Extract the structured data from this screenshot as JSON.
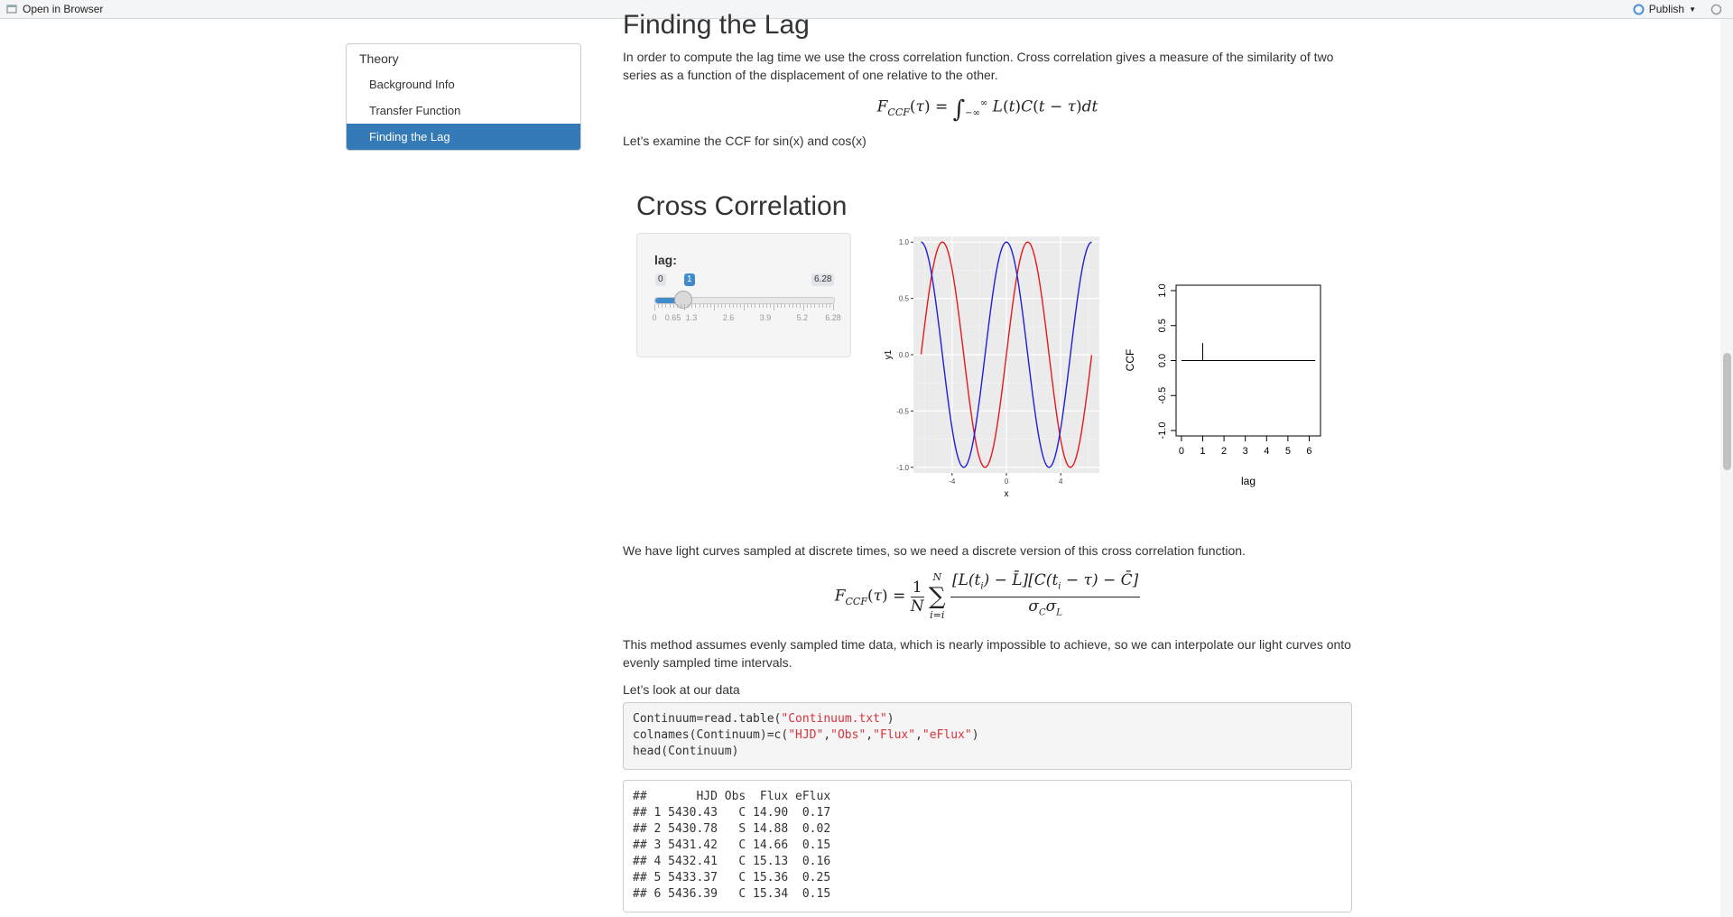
{
  "toolbar": {
    "open_in_browser": "Open in Browser",
    "publish": "Publish"
  },
  "toc": {
    "title": "Theory",
    "items": [
      "Background Info",
      "Transfer Function",
      "Finding the Lag"
    ]
  },
  "section": {
    "heading": "Finding the Lag",
    "p1": "In order to compute the lag time we use the cross correlation function. Cross correlation gives a measure of the similarity of two series as a function of the displacement of one relative to the other.",
    "p2": "Let’s examine the CCF for sin(x) and cos(x)",
    "p3": "We have light curves sampled at discrete times, so we need a discrete version of this cross correlation function.",
    "p4": "This method assumes evenly sampled time data, which is nearly impossible to achieve, so we can interpolate our light curves onto evenly sampled time intervals.",
    "p5": "Let’s look at our data"
  },
  "app": {
    "title": "Cross Correlation",
    "slider": {
      "label": "lag:",
      "min_label": "0",
      "max_label": "6.28",
      "value_label": "1",
      "value": 1,
      "min": 0,
      "max": 6.28,
      "tick_labels": [
        "0",
        "0.65",
        "1.3",
        "2.6",
        "3.9",
        "5.2",
        "6.28"
      ]
    }
  },
  "colors": {
    "accent": "#337ab7",
    "sin": "#e41a1c",
    "cos": "#1f1fd6"
  },
  "chart_data": [
    {
      "type": "line",
      "title": "",
      "xlabel": "x",
      "ylabel": "y1",
      "xlim": [
        -6.28,
        6.28
      ],
      "ylim": [
        -1,
        1
      ],
      "xticks": [
        "-4",
        "0",
        "4"
      ],
      "yticks": [
        "-1.0",
        "-0.5",
        "0.0",
        "0.5",
        "1.0"
      ],
      "grid": true,
      "series": [
        {
          "color": "#e41a1c",
          "function": "sin(x)"
        },
        {
          "color": "#1f1fd6",
          "function": "cos(x)"
        }
      ]
    },
    {
      "type": "bar",
      "title": "",
      "xlabel": "lag",
      "ylabel": "CCF",
      "xlim": [
        0,
        6.28
      ],
      "ylim": [
        -1,
        1
      ],
      "xticks": [
        "0",
        "1",
        "2",
        "3",
        "4",
        "5",
        "6"
      ],
      "yticks": [
        "-1.0",
        "-0.5",
        "0.0",
        "0.5",
        "1.0"
      ],
      "spike": {
        "x": 1,
        "y": 0.25
      }
    }
  ],
  "code": {
    "lines": [
      [
        "Continuum=read.table(",
        "\"Continuum.txt\"",
        ")"
      ],
      [
        "colnames(Continuum)=c(",
        "\"HJD\"",
        ",",
        "\"Obs\"",
        ",",
        "\"Flux\"",
        ",",
        "\"eFlux\"",
        ")"
      ],
      [
        "head(Continuum)"
      ]
    ],
    "output": [
      "##       HJD Obs  Flux eFlux",
      "## 1 5430.43   C 14.90  0.17",
      "## 2 5430.78   S 14.88  0.02",
      "## 3 5431.42   C 14.66  0.15",
      "## 4 5432.41   C 15.13  0.16",
      "## 5 5433.37   C 15.36  0.25",
      "## 6 5436.39   C 15.34  0.15"
    ]
  }
}
